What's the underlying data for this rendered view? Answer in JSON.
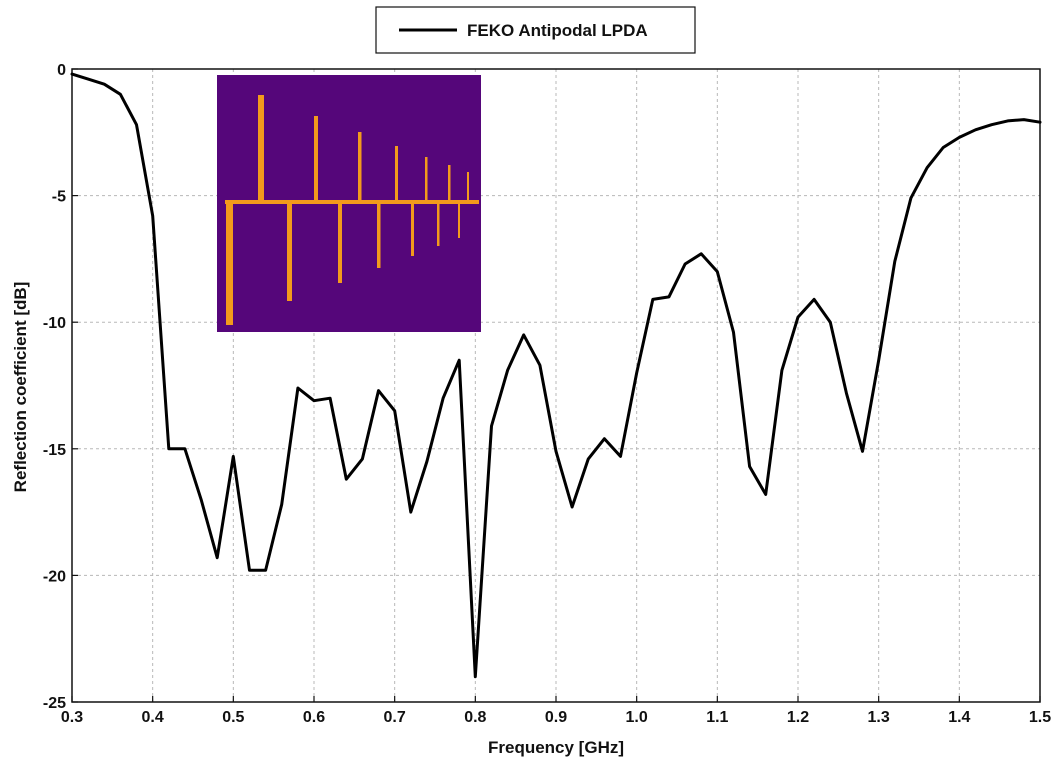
{
  "chart_data": {
    "type": "line",
    "xlabel": "Frequency [GHz]",
    "ylabel": "Reflection coefficient [dB]",
    "xlim": [
      0.3,
      1.5
    ],
    "ylim": [
      -25,
      0
    ],
    "xticks": [
      0.3,
      0.4,
      0.5,
      0.6,
      0.7,
      0.8,
      0.9,
      1.0,
      1.1,
      1.2,
      1.3,
      1.4,
      1.5
    ],
    "yticks": [
      0,
      -5,
      -10,
      -15,
      -20,
      -25
    ],
    "xtick_labels": [
      "0.3",
      "0.4",
      "0.5",
      "0.6",
      "0.7",
      "0.8",
      "0.9",
      "1.0",
      "1.1",
      "1.2",
      "1.3",
      "1.4",
      "1.5"
    ],
    "ytick_labels": [
      "0",
      "-5",
      "-10",
      "-15",
      "-20",
      "-25"
    ],
    "grid": true,
    "legend_position": "top-center",
    "series": [
      {
        "name": "FEKO Antipodal LPDA",
        "color": "#000000",
        "x": [
          0.3,
          0.32,
          0.34,
          0.36,
          0.38,
          0.4,
          0.42,
          0.44,
          0.46,
          0.48,
          0.5,
          0.52,
          0.54,
          0.56,
          0.58,
          0.6,
          0.62,
          0.64,
          0.66,
          0.68,
          0.7,
          0.72,
          0.74,
          0.76,
          0.78,
          0.8,
          0.82,
          0.84,
          0.86,
          0.88,
          0.9,
          0.92,
          0.94,
          0.96,
          0.98,
          1.0,
          1.02,
          1.04,
          1.06,
          1.08,
          1.1,
          1.12,
          1.14,
          1.16,
          1.18,
          1.2,
          1.22,
          1.24,
          1.26,
          1.28,
          1.3,
          1.32,
          1.34,
          1.36,
          1.38,
          1.4,
          1.42,
          1.44,
          1.46,
          1.48,
          1.5
        ],
        "y": [
          -0.2,
          -0.4,
          -0.6,
          -1.0,
          -2.2,
          -5.8,
          -15.0,
          -15.0,
          -17.0,
          -19.3,
          -15.3,
          -19.8,
          -19.8,
          -17.2,
          -12.6,
          -13.1,
          -13.0,
          -16.2,
          -15.4,
          -12.7,
          -13.5,
          -17.5,
          -15.5,
          -13.0,
          -11.5,
          -24.0,
          -14.1,
          -11.9,
          -10.5,
          -11.7,
          -15.1,
          -17.3,
          -15.4,
          -14.6,
          -15.3,
          -12.0,
          -9.1,
          -9.0,
          -7.7,
          -7.3,
          -8.0,
          -10.4,
          -15.7,
          -16.8,
          -11.9,
          -9.8,
          -9.1,
          -10.0,
          -12.8,
          -15.1,
          -11.5,
          -7.6,
          -5.1,
          -3.9,
          -3.1,
          -2.7,
          -2.4,
          -2.2,
          -2.05,
          -2.0,
          -2.1
        ]
      }
    ]
  },
  "inset": {
    "background_color": "#55067a",
    "element_color": "#f39a1c"
  }
}
